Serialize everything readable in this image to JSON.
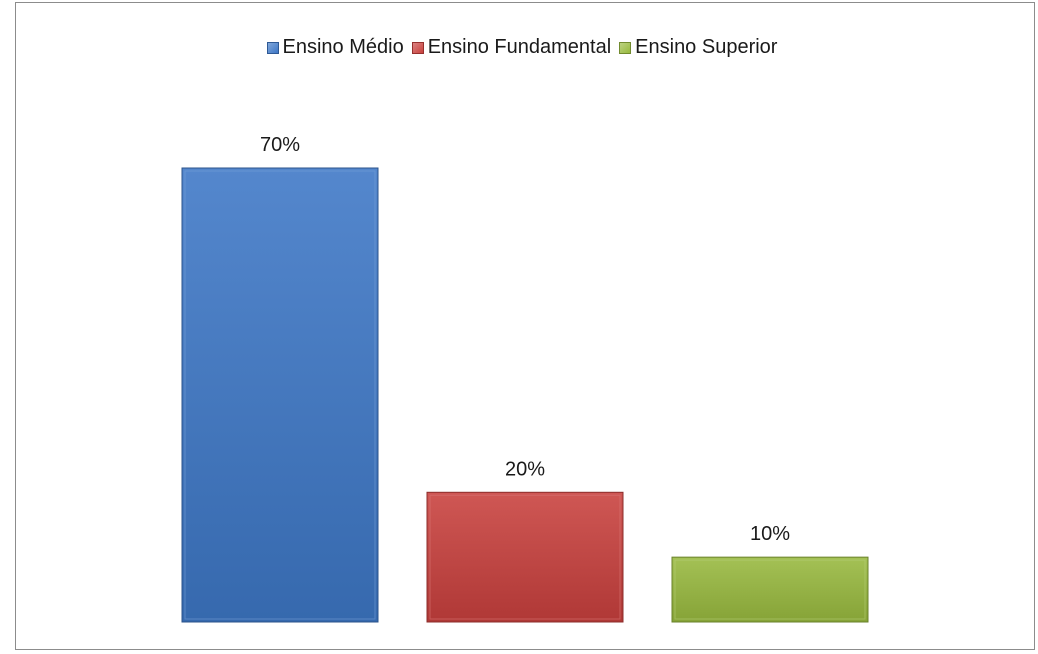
{
  "chart_data": {
    "type": "bar",
    "categories": [
      "Ensino Médio",
      "Ensino Fundamental",
      "Ensino Superior"
    ],
    "values": [
      70,
      20,
      10
    ],
    "data_labels": [
      "70%",
      "20%",
      "10%"
    ],
    "unit": "%",
    "title": "",
    "xlabel": "",
    "ylabel": "",
    "ylim": [
      0,
      70
    ],
    "grid": false,
    "legend_placement": "top",
    "colors": [
      "#3d77c6",
      "#c8403d",
      "#98b93e"
    ],
    "legend": [
      {
        "label": "Ensino Médio",
        "color": "#3d77c6"
      },
      {
        "label": "Ensino Fundamental",
        "color": "#c8403d"
      },
      {
        "label": "Ensino Superior",
        "color": "#98b93e"
      }
    ]
  }
}
